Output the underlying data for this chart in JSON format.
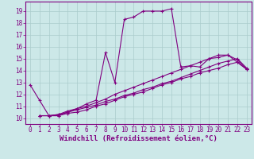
{
  "xlabel": "Windchill (Refroidissement éolien,°C)",
  "ylabel": "",
  "background_color": "#cce8e8",
  "line_color": "#800080",
  "grid_color": "#aacccc",
  "xlim": [
    -0.5,
    23.5
  ],
  "ylim": [
    9.5,
    19.8
  ],
  "xticks": [
    0,
    1,
    2,
    3,
    4,
    5,
    6,
    7,
    8,
    9,
    10,
    11,
    12,
    13,
    14,
    15,
    16,
    17,
    18,
    19,
    20,
    21,
    22,
    23
  ],
  "yticks": [
    10,
    11,
    12,
    13,
    14,
    15,
    16,
    17,
    18,
    19
  ],
  "series": [
    {
      "x": [
        0,
        1,
        2,
        3,
        4,
        5,
        6,
        7,
        8,
        9,
        10,
        11,
        12,
        13,
        14,
        15,
        16,
        17,
        18,
        19,
        20,
        21,
        22,
        23
      ],
      "y": [
        12.8,
        11.5,
        10.2,
        10.2,
        10.5,
        10.8,
        11.2,
        11.5,
        15.5,
        13.0,
        18.3,
        18.5,
        19.0,
        19.0,
        19.0,
        19.2,
        14.3,
        14.4,
        14.3,
        15.0,
        15.3,
        15.3,
        14.7,
        14.1
      ]
    },
    {
      "x": [
        1,
        2,
        3,
        4,
        5,
        6,
        7,
        8,
        9,
        10,
        11,
        12,
        13,
        14,
        15,
        16,
        17,
        18,
        19,
        20,
        21,
        22,
        23
      ],
      "y": [
        10.2,
        10.2,
        10.2,
        10.4,
        10.5,
        10.7,
        11.0,
        11.2,
        11.5,
        11.8,
        12.0,
        12.2,
        12.5,
        12.8,
        13.0,
        13.3,
        13.5,
        13.8,
        14.0,
        14.2,
        14.5,
        14.7,
        14.1
      ]
    },
    {
      "x": [
        1,
        2,
        3,
        4,
        5,
        6,
        7,
        8,
        9,
        10,
        11,
        12,
        13,
        14,
        15,
        16,
        17,
        18,
        19,
        20,
        21,
        22,
        23
      ],
      "y": [
        10.2,
        10.2,
        10.3,
        10.5,
        10.7,
        10.9,
        11.1,
        11.4,
        11.6,
        11.9,
        12.1,
        12.4,
        12.6,
        12.9,
        13.1,
        13.4,
        13.7,
        14.0,
        14.3,
        14.6,
        14.8,
        15.0,
        14.2
      ]
    },
    {
      "x": [
        1,
        2,
        3,
        4,
        5,
        6,
        7,
        8,
        9,
        10,
        11,
        12,
        13,
        14,
        15,
        16,
        17,
        18,
        19,
        20,
        21,
        22,
        23
      ],
      "y": [
        10.2,
        10.2,
        10.3,
        10.6,
        10.8,
        11.0,
        11.3,
        11.6,
        12.0,
        12.3,
        12.6,
        12.9,
        13.2,
        13.5,
        13.8,
        14.1,
        14.4,
        14.7,
        15.0,
        15.1,
        15.3,
        14.9,
        14.1
      ]
    }
  ],
  "marker": "+",
  "markersize": 3,
  "linewidth": 0.8,
  "tick_fontsize": 5.5,
  "xlabel_fontsize": 6.5
}
